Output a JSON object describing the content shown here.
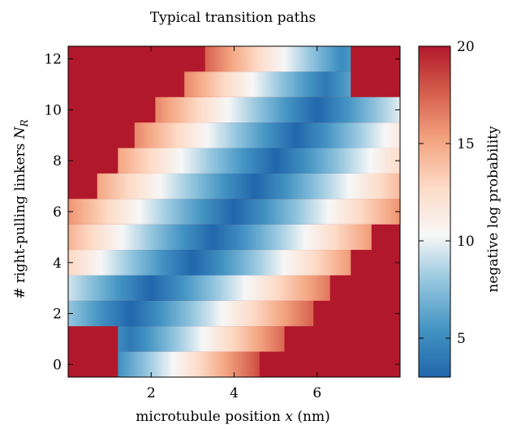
{
  "chart_data": {
    "type": "heatmap",
    "title": "Typical transition paths",
    "xlabel_text": "microtubule position ",
    "xlabel_var": "x",
    "xlabel_unit": " (nm)",
    "ylabel_text": "# right-pulling linkers ",
    "ylabel_var": "N",
    "ylabel_sub": "R",
    "colorbar_label": "negative log probability",
    "xlim": [
      0,
      8
    ],
    "ylim": [
      -0.5,
      12.5
    ],
    "x_ticks": [
      2,
      4,
      6
    ],
    "y_ticks": [
      0,
      2,
      4,
      6,
      8,
      10,
      12
    ],
    "colorbar_range": [
      3,
      20
    ],
    "colorbar_ticks": [
      5,
      10,
      15,
      20
    ],
    "colormap": [
      "#2166ac",
      "#4393c3",
      "#92c5de",
      "#f7f7f7",
      "#fddbc7",
      "#f4a582",
      "#d6604d",
      "#b2182b"
    ],
    "background_value": 20,
    "rows": [
      {
        "n": 0,
        "x_start": 1.2,
        "x_end": 4.6,
        "x_min": 1.0,
        "v_min": 4.5,
        "slope": 3.8
      },
      {
        "n": 1,
        "x_start": 1.2,
        "x_end": 5.2,
        "x_min": 1.5,
        "v_min": 4.0,
        "slope": 3.6
      },
      {
        "n": 2,
        "x_start": 0.0,
        "x_end": 5.9,
        "x_min": 1.5,
        "v_min": 3.0,
        "slope": 3.3
      },
      {
        "n": 3,
        "x_start": 0.0,
        "x_end": 6.3,
        "x_min": 2.0,
        "v_min": 3.0,
        "slope": 3.2
      },
      {
        "n": 4,
        "x_start": 0.0,
        "x_end": 6.8,
        "x_min": 3.0,
        "v_min": 3.0,
        "slope": 3.3
      },
      {
        "n": 5,
        "x_start": 0.0,
        "x_end": 7.3,
        "x_min": 3.5,
        "v_min": 3.0,
        "slope": 3.3
      },
      {
        "n": 6,
        "x_start": 0.0,
        "x_end": 8.0,
        "x_min": 4.0,
        "v_min": 3.0,
        "slope": 3.2
      },
      {
        "n": 7,
        "x_start": 0.7,
        "x_end": 8.0,
        "x_min": 4.5,
        "v_min": 3.0,
        "slope": 3.2
      },
      {
        "n": 8,
        "x_start": 1.2,
        "x_end": 8.0,
        "x_min": 5.0,
        "v_min": 3.0,
        "slope": 3.2
      },
      {
        "n": 9,
        "x_start": 1.6,
        "x_end": 8.0,
        "x_min": 5.5,
        "v_min": 3.0,
        "slope": 3.4
      },
      {
        "n": 10,
        "x_start": 2.1,
        "x_end": 8.0,
        "x_min": 6.0,
        "v_min": 3.0,
        "slope": 3.4
      },
      {
        "n": 11,
        "x_start": 2.8,
        "x_end": 6.8,
        "x_min": 6.2,
        "v_min": 4.0,
        "slope": 3.6
      },
      {
        "n": 12,
        "x_start": 3.3,
        "x_end": 6.8,
        "x_min": 6.6,
        "v_min": 5.0,
        "slope": 3.8
      }
    ]
  }
}
